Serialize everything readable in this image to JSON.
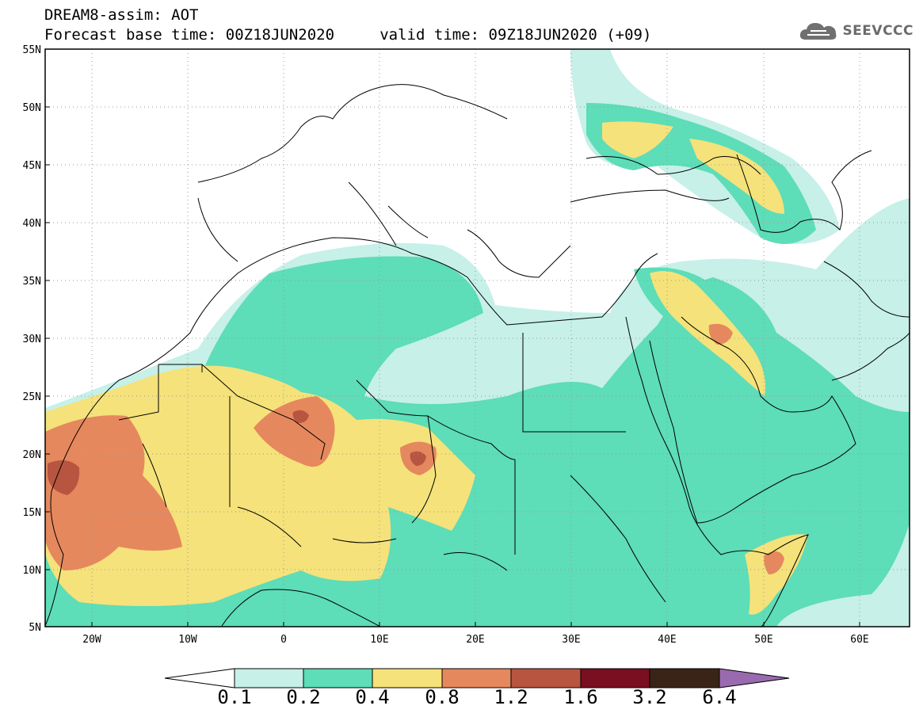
{
  "header": {
    "title_line1": "DREAM8-assim: AOT",
    "title_line2": "Forecast base time: 00Z18JUN2020     valid time: 09Z18JUN2020 (+09)"
  },
  "logo": {
    "text": "SEEVCCC",
    "icon": "cloud-icon"
  },
  "map": {
    "lon_range": [
      -25,
      65
    ],
    "lat_range": [
      5,
      55
    ],
    "lat_labels": [
      "55N",
      "50N",
      "45N",
      "40N",
      "35N",
      "30N",
      "25N",
      "20N",
      "15N",
      "10N",
      "5N"
    ],
    "lon_labels": [
      "20W",
      "10W",
      "0",
      "10E",
      "20E",
      "30E",
      "40E",
      "50E",
      "60E"
    ],
    "grid": "dotted"
  },
  "colorbar": {
    "levels": [
      "0.1",
      "0.2",
      "0.4",
      "0.8",
      "1.2",
      "1.6",
      "3.2",
      "6.4"
    ],
    "colors": [
      "#c6f0e8",
      "#5dddb8",
      "#f5e27a",
      "#e6885e",
      "#b85540",
      "#7a0f22",
      "#3a2418"
    ],
    "under_color": "#ffffff",
    "over_color": "#9a6ab0"
  }
}
